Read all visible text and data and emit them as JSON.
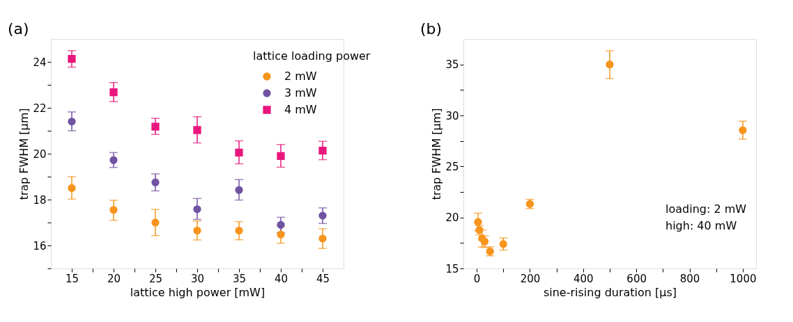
{
  "chart_data": [
    {
      "type": "scatter",
      "annotations": [
        "(a)"
      ],
      "xlabel": "lattice high power [mW]",
      "ylabel": "trap FWHM [µm]",
      "legend_title": "lattice loading power",
      "legend": "top right",
      "grid": false,
      "x": [
        15,
        20,
        25,
        30,
        35,
        40,
        45
      ],
      "xlim": [
        12.5,
        47.5
      ],
      "xticks": [
        15,
        {
          "value": 17.5,
          "label": null
        },
        20,
        {
          "value": 22.5,
          "label": null
        },
        25,
        {
          "value": 27.5,
          "label": null
        },
        30,
        {
          "value": 32.5,
          "label": null
        },
        35,
        {
          "value": 37.5,
          "label": null
        },
        40,
        {
          "value": 42.5,
          "label": null
        },
        45
      ],
      "ylim": [
        15,
        25
      ],
      "yticks": [
        {
          "value": 15,
          "label": null
        },
        16,
        {
          "value": 17,
          "label": null
        },
        18,
        {
          "value": 19,
          "label": null
        },
        20,
        {
          "value": 21,
          "label": null
        },
        22,
        {
          "value": 23,
          "label": null
        },
        24
      ],
      "series": [
        {
          "name": "2 mW",
          "color": "#f7941d",
          "marker": "circle",
          "values": [
            18.5,
            17.55,
            17.0,
            16.65,
            16.65,
            16.48,
            16.3
          ],
          "errors": [
            [
              18.02,
              19.0
            ],
            [
              17.1,
              17.97
            ],
            [
              16.43,
              17.57
            ],
            [
              16.24,
              17.07
            ],
            [
              16.25,
              17.04
            ],
            [
              16.1,
              16.83
            ],
            [
              15.87,
              16.73
            ]
          ]
        },
        {
          "name": "3 mW",
          "color": "#7153a4",
          "marker": "circle",
          "values": [
            21.4,
            19.72,
            18.75,
            17.58,
            18.42,
            16.9,
            17.3
          ],
          "errors": [
            [
              21.0,
              21.82
            ],
            [
              19.4,
              20.05
            ],
            [
              18.38,
              19.12
            ],
            [
              17.14,
              18.05
            ],
            [
              17.98,
              18.87
            ],
            [
              16.56,
              17.23
            ],
            [
              16.96,
              17.64
            ]
          ]
        },
        {
          "name": "4 mW",
          "color": "#e8177d",
          "marker": "square",
          "values": [
            24.13,
            22.68,
            21.18,
            21.03,
            20.05,
            19.9,
            20.13
          ],
          "errors": [
            [
              23.77,
              24.49
            ],
            [
              22.27,
              23.1
            ],
            [
              20.84,
              21.54
            ],
            [
              20.47,
              21.61
            ],
            [
              19.56,
              20.56
            ],
            [
              19.41,
              20.4
            ],
            [
              19.74,
              20.54
            ]
          ]
        }
      ]
    },
    {
      "type": "scatter",
      "annotations": [
        "(b)",
        "loading: 2 mW",
        "high: 40 mW"
      ],
      "xlabel": "sine-rising duration [µs]",
      "ylabel": "trap FWHM [µm]",
      "grid": false,
      "x": [
        5,
        10,
        20,
        30,
        50,
        100,
        200,
        500,
        1000
      ],
      "xlim": [
        -50,
        1050
      ],
      "xticks": [
        0,
        {
          "value": 100,
          "label": null
        },
        200,
        {
          "value": 300,
          "label": null
        },
        400,
        {
          "value": 500,
          "label": null
        },
        600,
        {
          "value": 700,
          "label": null
        },
        800,
        {
          "value": 900,
          "label": null
        },
        1000
      ],
      "ylim": [
        15,
        37.5
      ],
      "yticks": [
        15,
        {
          "value": 17.5,
          "label": null
        },
        20,
        {
          "value": 22.5,
          "label": null
        },
        25,
        {
          "value": 27.5,
          "label": null
        },
        30,
        {
          "value": 32.5,
          "label": null
        },
        35
      ],
      "series": [
        {
          "color": "#f7941d",
          "marker": "circle",
          "values": [
            19.55,
            18.77,
            17.95,
            17.64,
            16.67,
            17.39,
            21.33,
            35.0,
            28.55
          ],
          "errors": [
            [
              18.7,
              20.42
            ],
            [
              18.3,
              19.2
            ],
            [
              17.1,
              18.77
            ],
            [
              17.06,
              18.2
            ],
            [
              16.24,
              17.12
            ],
            [
              16.8,
              17.99
            ],
            [
              20.88,
              21.78
            ],
            [
              33.62,
              36.34
            ],
            [
              27.68,
              29.44
            ]
          ]
        }
      ]
    }
  ]
}
